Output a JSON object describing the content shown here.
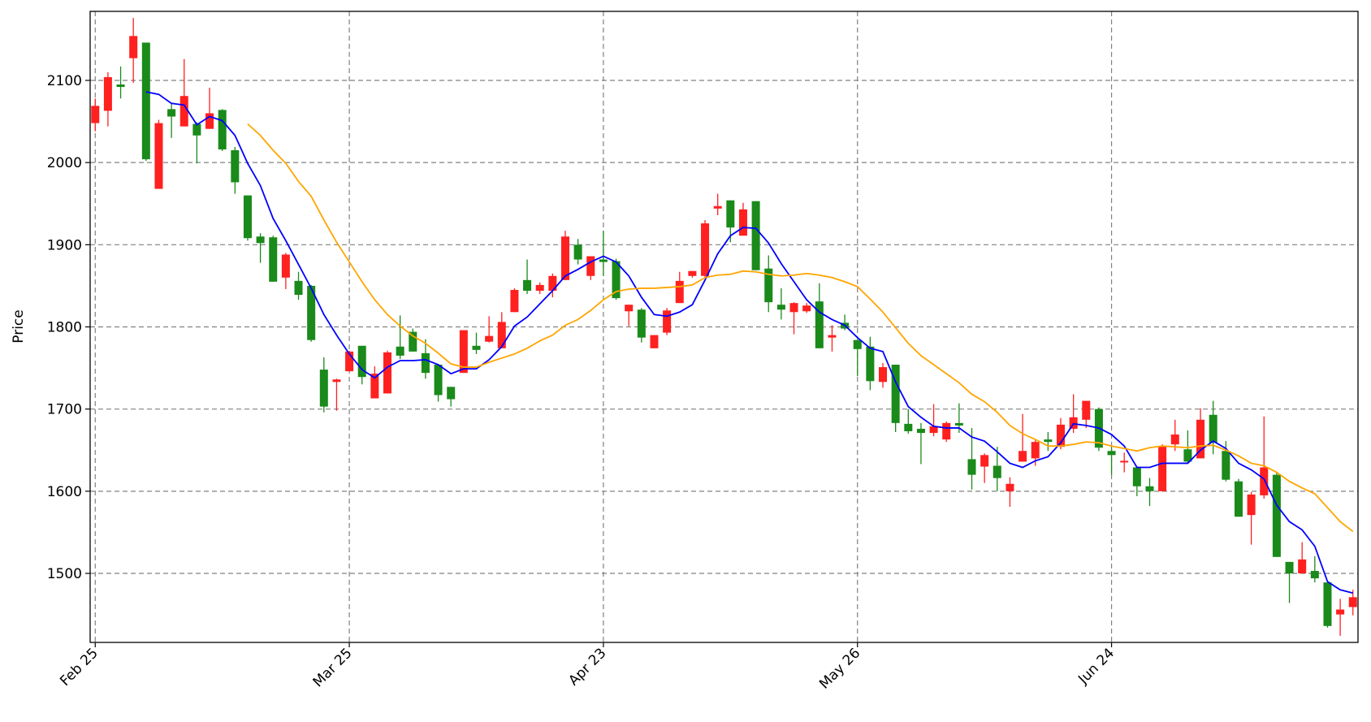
{
  "chart_data": {
    "type": "candlestick",
    "y_label": "Price",
    "categories": [
      "Feb 25",
      null,
      null,
      null,
      null,
      null,
      null,
      null,
      null,
      null,
      null,
      null,
      null,
      null,
      null,
      null,
      null,
      null,
      null,
      null,
      "Mar 25",
      null,
      null,
      null,
      null,
      null,
      null,
      null,
      null,
      null,
      null,
      null,
      null,
      null,
      null,
      null,
      null,
      null,
      null,
      null,
      "Apr 23",
      null,
      null,
      null,
      null,
      null,
      null,
      null,
      null,
      null,
      null,
      null,
      null,
      null,
      null,
      null,
      null,
      null,
      null,
      null,
      "May 26",
      null,
      null,
      null,
      null,
      null,
      null,
      null,
      null,
      null,
      null,
      null,
      null,
      null,
      null,
      null,
      null,
      null,
      null,
      null,
      "Jun 24",
      null,
      null,
      null,
      null,
      null,
      null,
      null,
      null,
      null,
      null,
      null,
      null,
      null,
      null,
      null,
      null,
      null,
      null,
      null
    ],
    "open": [
      2048,
      2063,
      2095,
      2127,
      2146,
      1968,
      2065,
      2044,
      2047,
      2041,
      2064,
      2015,
      1960,
      1910,
      1909,
      1860,
      1856,
      1850,
      1748,
      1733,
      1746,
      1777,
      1713,
      1719,
      1776,
      1794,
      1768,
      1754,
      1727,
      1744,
      1777,
      1782,
      1774,
      1818,
      1857,
      1844,
      1844,
      1857,
      1900,
      1862,
      1882,
      1880,
      1819,
      1821,
      1774,
      1793,
      1829,
      1862,
      1862,
      1944,
      1954,
      1911,
      1953,
      1871,
      1827,
      1818,
      1819,
      1831,
      1787,
      1805,
      1784,
      1776,
      1733,
      1754,
      1682,
      1676,
      1671,
      1663,
      1683,
      1639,
      1630,
      1631,
      1600,
      1636,
      1640,
      1663,
      1654,
      1676,
      1687,
      1700,
      1649,
      1635,
      1629,
      1606,
      1600,
      1657,
      1651,
      1640,
      1693,
      1649,
      1612,
      1571,
      1595,
      1620,
      1514,
      1500,
      1503,
      1489,
      1450,
      1459
    ],
    "high": [
      2078,
      2110,
      2117,
      2176,
      2146,
      2052,
      2073,
      2126,
      2049,
      2091,
      2065,
      2019,
      1960,
      1914,
      1911,
      1890,
      1867,
      1851,
      1763,
      1737,
      1771,
      1777,
      1752,
      1771,
      1814,
      1798,
      1785,
      1755,
      1727,
      1796,
      1793,
      1813,
      1818,
      1847,
      1882,
      1854,
      1865,
      1917,
      1907,
      1886,
      1917,
      1883,
      1827,
      1823,
      1790,
      1823,
      1867,
      1868,
      1930,
      1962,
      1954,
      1951,
      1953,
      1887,
      1847,
      1830,
      1829,
      1853,
      1802,
      1815,
      1784,
      1788,
      1756,
      1754,
      1700,
      1683,
      1706,
      1685,
      1707,
      1677,
      1646,
      1654,
      1617,
      1694,
      1662,
      1672,
      1689,
      1718,
      1710,
      1702,
      1655,
      1647,
      1629,
      1616,
      1657,
      1687,
      1674,
      1701,
      1710,
      1661,
      1615,
      1599,
      1691,
      1623,
      1514,
      1538,
      1521,
      1489,
      1469,
      1480
    ],
    "low": [
      2038,
      2044,
      2078,
      2097,
      2002,
      1968,
      2030,
      2044,
      1999,
      2041,
      2014,
      1962,
      1905,
      1878,
      1855,
      1846,
      1833,
      1782,
      1696,
      1698,
      1746,
      1730,
      1713,
      1719,
      1761,
      1770,
      1737,
      1709,
      1703,
      1744,
      1767,
      1781,
      1774,
      1818,
      1840,
      1840,
      1836,
      1857,
      1876,
      1857,
      1862,
      1833,
      1801,
      1781,
      1774,
      1790,
      1829,
      1860,
      1860,
      1936,
      1903,
      1911,
      1869,
      1818,
      1809,
      1791,
      1817,
      1774,
      1770,
      1796,
      1740,
      1723,
      1726,
      1672,
      1670,
      1633,
      1667,
      1660,
      1671,
      1602,
      1610,
      1600,
      1581,
      1636,
      1631,
      1649,
      1651,
      1671,
      1677,
      1649,
      1620,
      1623,
      1594,
      1582,
      1600,
      1649,
      1634,
      1640,
      1645,
      1612,
      1569,
      1535,
      1591,
      1520,
      1464,
      1500,
      1489,
      1434,
      1424,
      1449
    ],
    "close": [
      2069,
      2104,
      2092,
      2154,
      2004,
      2048,
      2056,
      2081,
      2033,
      2060,
      2016,
      1976,
      1908,
      1902,
      1855,
      1888,
      1839,
      1784,
      1703,
      1736,
      1770,
      1739,
      1743,
      1769,
      1765,
      1770,
      1744,
      1717,
      1712,
      1796,
      1772,
      1789,
      1806,
      1845,
      1844,
      1851,
      1862,
      1910,
      1882,
      1886,
      1879,
      1835,
      1827,
      1787,
      1790,
      1820,
      1856,
      1868,
      1926,
      1947,
      1921,
      1943,
      1869,
      1830,
      1821,
      1829,
      1826,
      1774,
      1790,
      1798,
      1773,
      1734,
      1751,
      1683,
      1673,
      1671,
      1679,
      1683,
      1680,
      1620,
      1644,
      1616,
      1609,
      1649,
      1660,
      1660,
      1681,
      1690,
      1710,
      1653,
      1644,
      1637,
      1606,
      1600,
      1655,
      1669,
      1636,
      1687,
      1659,
      1614,
      1569,
      1596,
      1629,
      1520,
      1500,
      1517,
      1494,
      1436,
      1456,
      1471
    ],
    "up_color": "#ff2020",
    "down_color": "#1a8a1a",
    "series": [
      {
        "color": "#0000ff",
        "values": [
          null,
          null,
          null,
          null,
          2086,
          2083,
          2072,
          2070,
          2046,
          2056,
          2051,
          2033,
          1999,
          1972,
          1932,
          1905,
          1876,
          1847,
          1815,
          1790,
          1767,
          1748,
          1738,
          1751,
          1759,
          1759,
          1760,
          1754,
          1743,
          1749,
          1749,
          1760,
          1776,
          1801,
          1812,
          1828,
          1844,
          1862,
          1870,
          1879,
          1886,
          1879,
          1862,
          1836,
          1815,
          1813,
          1818,
          1827,
          1857,
          1889,
          1911,
          1921,
          1920,
          1902,
          1877,
          1855,
          1833,
          1818,
          1809,
          1802,
          1787,
          1774,
          1770,
          1733,
          1703,
          1690,
          1679,
          1677,
          1677,
          1666,
          1661,
          1648,
          1634,
          1629,
          1637,
          1642,
          1659,
          1682,
          1680,
          1677,
          1669,
          1655,
          1629,
          1629,
          1634,
          1634,
          1634,
          1650,
          1661,
          1652,
          1634,
          1626,
          1615,
          1583,
          1563,
          1553,
          1533,
          1490,
          1480,
          1476
        ]
      },
      {
        "color": "#ffa500",
        "values": [
          null,
          null,
          null,
          null,
          null,
          null,
          null,
          null,
          null,
          null,
          null,
          null,
          2047,
          2033,
          2015,
          1999,
          1977,
          1959,
          1930,
          1903,
          1879,
          1855,
          1833,
          1815,
          1801,
          1789,
          1780,
          1768,
          1755,
          1751,
          1751,
          1757,
          1762,
          1767,
          1774,
          1783,
          1790,
          1802,
          1809,
          1820,
          1833,
          1843,
          1846,
          1847,
          1847,
          1848,
          1849,
          1851,
          1860,
          1863,
          1864,
          1868,
          1867,
          1864,
          1862,
          1863,
          1865,
          1863,
          1860,
          1855,
          1849,
          1834,
          1818,
          1799,
          1780,
          1765,
          1754,
          1743,
          1732,
          1718,
          1709,
          1696,
          1680,
          1670,
          1663,
          1655,
          1655,
          1657,
          1660,
          1659,
          1655,
          1652,
          1649,
          1653,
          1655,
          1654,
          1653,
          1655,
          1656,
          1650,
          1643,
          1634,
          1631,
          1623,
          1612,
          1604,
          1597,
          1580,
          1563,
          1551
        ]
      }
    ],
    "xlim": [
      -0.4,
      99.4
    ],
    "ylim": [
      1416,
      2184
    ],
    "yticks": [
      1500,
      1600,
      1700,
      1800,
      1900,
      2000,
      2100
    ],
    "grid": true
  }
}
